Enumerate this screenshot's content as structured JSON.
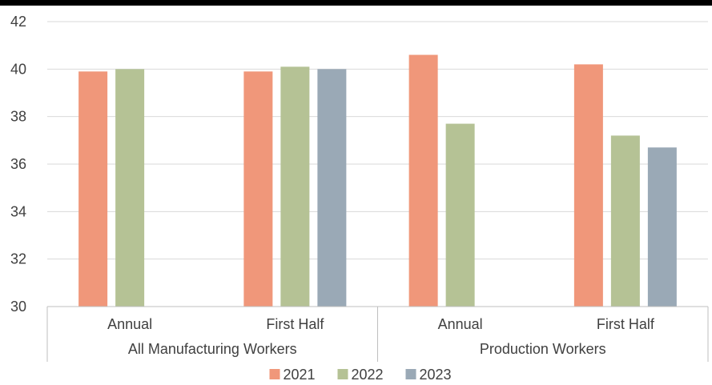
{
  "chart_data": {
    "type": "bar",
    "groups": [
      {
        "name": "All Manufacturing Workers",
        "categories": [
          "Annual",
          "First Half"
        ]
      },
      {
        "name": "Production Workers",
        "categories": [
          "Annual",
          "First Half"
        ]
      }
    ],
    "categories": [
      "Annual",
      "First Half",
      "Annual",
      "First Half"
    ],
    "series": [
      {
        "name": "2021",
        "color": "#F0977A",
        "values": [
          39.9,
          39.9,
          40.6,
          40.2
        ]
      },
      {
        "name": "2022",
        "color": "#B5C295",
        "values": [
          40.0,
          40.1,
          37.7,
          37.2
        ]
      },
      {
        "name": "2023",
        "color": "#9AA9B6",
        "values": [
          null,
          40.0,
          null,
          36.7
        ]
      }
    ],
    "ylim": [
      30,
      42
    ],
    "yticks": [
      30,
      32,
      34,
      36,
      38,
      40,
      42
    ],
    "grid": true,
    "legend_position": "bottom",
    "title": "",
    "xlabel": "",
    "ylabel": ""
  }
}
